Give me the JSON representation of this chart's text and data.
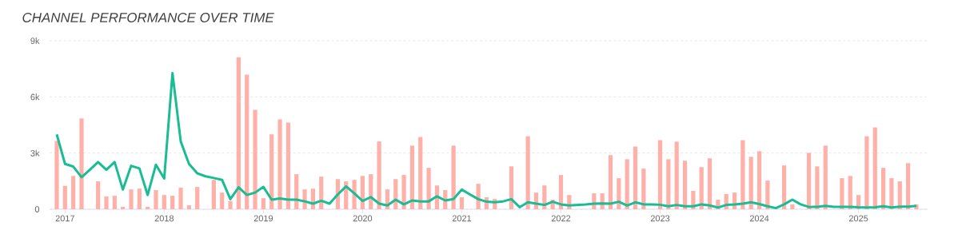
{
  "chart_data": {
    "type": "bar",
    "title": "CHANNEL PERFORMANCE OVER TIME",
    "x": [
      "2016-12",
      "2017-01",
      "2017-02",
      "2017-03",
      "2017-04",
      "2017-05",
      "2017-06",
      "2017-07",
      "2017-08",
      "2017-09",
      "2017-10",
      "2017-11",
      "2017-12",
      "2018-01",
      "2018-02",
      "2018-03",
      "2018-04",
      "2018-05",
      "2018-06",
      "2018-07",
      "2018-08",
      "2018-09",
      "2018-10",
      "2018-11",
      "2018-12",
      "2019-01",
      "2019-02",
      "2019-03",
      "2019-04",
      "2019-05",
      "2019-06",
      "2019-07",
      "2019-08",
      "2019-09",
      "2019-10",
      "2019-11",
      "2019-12",
      "2020-01",
      "2020-02",
      "2020-03",
      "2020-04",
      "2020-05",
      "2020-06",
      "2020-07",
      "2020-08",
      "2020-09",
      "2020-10",
      "2020-11",
      "2020-12",
      "2021-01",
      "2021-02",
      "2021-03",
      "2021-04",
      "2021-05",
      "2021-06",
      "2021-07",
      "2021-08",
      "2021-09",
      "2021-10",
      "2021-11",
      "2021-12",
      "2022-01",
      "2022-02",
      "2022-03",
      "2022-04",
      "2022-05",
      "2022-06",
      "2022-07",
      "2022-08",
      "2022-09",
      "2022-10",
      "2022-11",
      "2022-12",
      "2023-01",
      "2023-02",
      "2023-03",
      "2023-04",
      "2023-05",
      "2023-06",
      "2023-07",
      "2023-08",
      "2023-09",
      "2023-10",
      "2023-11",
      "2023-12",
      "2024-01",
      "2024-02",
      "2024-03",
      "2024-04",
      "2024-05",
      "2024-06",
      "2024-07",
      "2024-08",
      "2024-09",
      "2024-10",
      "2024-11",
      "2024-12",
      "2025-01",
      "2025-02",
      "2025-03",
      "2025-04",
      "2025-05",
      "2025-06",
      "2025-07",
      "2025-08"
    ],
    "series": [
      {
        "color": "#ffb0a8",
        "values": [
          3650,
          1250,
          1780,
          4850,
          0,
          1490,
          680,
          720,
          130,
          1060,
          1100,
          130,
          1020,
          760,
          720,
          1150,
          210,
          1190,
          0,
          1570,
          890,
          440,
          8110,
          7190,
          5310,
          590,
          4000,
          4800,
          4630,
          1870,
          1060,
          1100,
          1740,
          0,
          1610,
          1490,
          1570,
          1780,
          1870,
          3620,
          1060,
          1610,
          1830,
          3400,
          3860,
          2210,
          1270,
          1020,
          3400,
          640,
          0,
          1360,
          640,
          550,
          null,
          2290,
          0,
          3900,
          890,
          1270,
          510,
          1830,
          760,
          0,
          0,
          850,
          850,
          2890,
          1660,
          2670,
          3350,
          2170,
          0,
          3690,
          2670,
          3610,
          2590,
          980,
          2250,
          2720,
          510,
          810,
          890,
          3690,
          2800,
          3100,
          1530,
          0,
          2340,
          260,
          0,
          3010,
          2290,
          3400,
          0,
          1660,
          1780,
          760,
          3900,
          4370,
          2210,
          1660,
          1490,
          2460,
          260
        ]
      },
      {
        "type": "line",
        "color": "#1abc94",
        "values": [
          4000,
          2420,
          2280,
          1710,
          2110,
          2520,
          2110,
          2520,
          1050,
          2320,
          2180,
          760,
          2380,
          1640,
          7270,
          3620,
          2420,
          1920,
          1760,
          1670,
          1570,
          540,
          1170,
          760,
          890,
          1190,
          510,
          580,
          510,
          510,
          420,
          300,
          450,
          300,
          790,
          1220,
          850,
          440,
          650,
          300,
          200,
          510,
          260,
          470,
          420,
          420,
          690,
          470,
          540,
          1050,
          790,
          540,
          400,
          370,
          420,
          540,
          110,
          370,
          300,
          230,
          400,
          260,
          200,
          230,
          260,
          300,
          310,
          300,
          400,
          200,
          370,
          260,
          260,
          240,
          160,
          230,
          160,
          160,
          260,
          200,
          90,
          230,
          260,
          300,
          370,
          280,
          160,
          60,
          260,
          510,
          260,
          120,
          130,
          180,
          130,
          130,
          130,
          110,
          100,
          110,
          160,
          100,
          140,
          140,
          180
        ]
      }
    ],
    "xlim": [
      "2016-11-05",
      "2025-09-12"
    ],
    "xticks": [
      "2017",
      "2018",
      "2019",
      "2020",
      "2021",
      "2022",
      "2023",
      "2024",
      "2025"
    ],
    "ylim": [
      0,
      9000
    ],
    "yticks": [
      0,
      {
        "value": 3000,
        "label": "3k"
      },
      {
        "value": 6000,
        "label": "6k"
      },
      {
        "value": 9000,
        "label": "9k"
      }
    ],
    "grid": "y",
    "legend": false
  }
}
